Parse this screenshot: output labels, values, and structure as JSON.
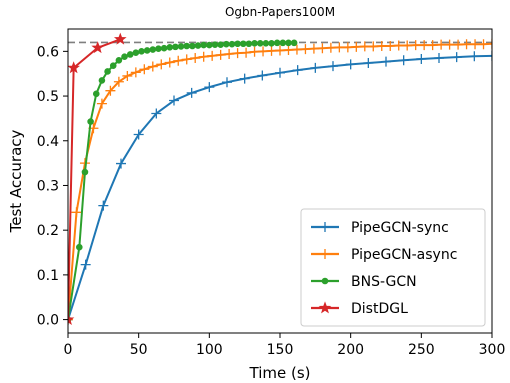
{
  "chart_data": {
    "type": "line",
    "title": "Ogbn-Papers100M",
    "xlabel": "Time (s)",
    "ylabel": "Test Accuracy",
    "xlim": [
      0,
      300
    ],
    "ylim": [
      -0.03,
      0.65
    ],
    "xticks": [
      0,
      50,
      100,
      150,
      200,
      250,
      300
    ],
    "yticks": [
      0.0,
      0.1,
      0.2,
      0.3,
      0.4,
      0.5,
      0.6
    ],
    "xtick_labels": [
      "0",
      "50",
      "100",
      "150",
      "200",
      "250",
      "300"
    ],
    "ytick_labels": [
      "0.0",
      "0.1",
      "0.2",
      "0.3",
      "0.4",
      "0.5",
      "0.6"
    ],
    "grid": false,
    "legend_position": "lower-right",
    "reference_line": {
      "y": 0.62,
      "style": "dashed",
      "color": "#7f7f7f"
    },
    "series": [
      {
        "name": "PipeGCN-sync",
        "color": "#1f77b4",
        "marker": "plus",
        "x": [
          0,
          12.5,
          25,
          37.5,
          50,
          62.5,
          75,
          87.5,
          100,
          112.5,
          125,
          137.5,
          150,
          162.5,
          175,
          187.5,
          200,
          212.5,
          225,
          237.5,
          250,
          262.5,
          275,
          287.5,
          300
        ],
        "y": [
          0.0,
          0.123,
          0.255,
          0.349,
          0.414,
          0.461,
          0.49,
          0.507,
          0.52,
          0.531,
          0.539,
          0.546,
          0.552,
          0.558,
          0.563,
          0.567,
          0.571,
          0.574,
          0.577,
          0.58,
          0.583,
          0.585,
          0.587,
          0.589,
          0.59
        ]
      },
      {
        "name": "PipeGCN-async",
        "color": "#ff7f0e",
        "marker": "plus",
        "x": [
          0,
          6,
          12,
          18,
          24,
          30,
          36,
          42,
          48,
          54,
          60,
          66,
          72,
          78,
          84,
          90,
          96,
          102,
          108,
          114,
          120,
          126,
          132,
          138,
          144,
          150,
          156,
          162,
          168,
          174,
          180,
          186,
          192,
          198,
          204,
          210,
          216,
          222,
          228,
          234,
          240,
          246,
          252,
          258,
          264,
          270,
          276,
          282,
          288,
          294,
          300
        ],
        "y": [
          0.0,
          0.24,
          0.35,
          0.428,
          0.483,
          0.512,
          0.532,
          0.545,
          0.553,
          0.56,
          0.566,
          0.571,
          0.575,
          0.579,
          0.582,
          0.585,
          0.588,
          0.59,
          0.592,
          0.594,
          0.596,
          0.597,
          0.599,
          0.6,
          0.601,
          0.602,
          0.603,
          0.604,
          0.605,
          0.606,
          0.607,
          0.608,
          0.609,
          0.609,
          0.61,
          0.611,
          0.611,
          0.612,
          0.612,
          0.613,
          0.613,
          0.614,
          0.614,
          0.614,
          0.615,
          0.615,
          0.615,
          0.616,
          0.616,
          0.616,
          0.617
        ]
      },
      {
        "name": "BNS-GCN",
        "color": "#2ca02c",
        "marker": "circle",
        "x": [
          0,
          8,
          12,
          16,
          20,
          24,
          28,
          32,
          36,
          40,
          44,
          48,
          52,
          56,
          60,
          64,
          68,
          72,
          76,
          80,
          84,
          88,
          92,
          96,
          100,
          104,
          108,
          112,
          116,
          120,
          124,
          128,
          132,
          136,
          140,
          144,
          148,
          152,
          156,
          160
        ],
        "y": [
          0.0,
          0.162,
          0.33,
          0.443,
          0.505,
          0.535,
          0.555,
          0.568,
          0.58,
          0.588,
          0.593,
          0.597,
          0.6,
          0.602,
          0.604,
          0.606,
          0.607,
          0.609,
          0.61,
          0.611,
          0.612,
          0.612,
          0.613,
          0.614,
          0.614,
          0.615,
          0.615,
          0.616,
          0.616,
          0.617,
          0.617,
          0.617,
          0.618,
          0.618,
          0.618,
          0.618,
          0.619,
          0.619,
          0.619,
          0.619
        ]
      },
      {
        "name": "DistDGL",
        "color": "#d62728",
        "marker": "star",
        "x": [
          0,
          4,
          21,
          37
        ],
        "y": [
          0.0,
          0.563,
          0.608,
          0.627
        ]
      }
    ]
  }
}
